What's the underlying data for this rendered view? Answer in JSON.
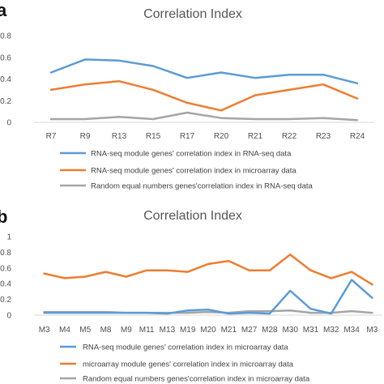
{
  "chart_data": [
    {
      "panel_label": "a",
      "type": "line",
      "title": "Correlation Index",
      "xlabel": "",
      "ylabel": "",
      "categories": [
        "R7",
        "R9",
        "R13",
        "R15",
        "R17",
        "R20",
        "R21",
        "R22",
        "R23",
        "R24"
      ],
      "y_tick_labels": [
        "0",
        "0.2",
        "0.4",
        "0.6",
        "0.8"
      ],
      "y_tick_values": [
        0,
        0.2,
        0.4,
        0.6,
        0.8
      ],
      "ylim": [
        0,
        0.8
      ],
      "grid": false,
      "legend_position": "bottom",
      "series": [
        {
          "name": "RNA-seq module genes' correlation index in RNA-seq data",
          "color": "#5B9BD5",
          "values": [
            0.46,
            0.58,
            0.57,
            0.52,
            0.41,
            0.46,
            0.41,
            0.44,
            0.44,
            0.36
          ]
        },
        {
          "name": "RNA-seq module genes' correlation index in microarray data",
          "color": "#ED7D31",
          "values": [
            0.3,
            0.35,
            0.38,
            0.3,
            0.18,
            0.11,
            0.25,
            0.3,
            0.35,
            0.22
          ]
        },
        {
          "name": "Random equal numbers genes'correlation index in RNA-seq data",
          "color": "#A5A5A5",
          "values": [
            0.03,
            0.03,
            0.05,
            0.03,
            0.09,
            0.04,
            0.03,
            0.03,
            0.04,
            0.02
          ]
        }
      ]
    },
    {
      "panel_label": "b",
      "type": "line",
      "title": "Correlation Index",
      "xlabel": "",
      "ylabel": "",
      "categories": [
        "M3",
        "M4",
        "M5",
        "M8",
        "M9",
        "M11",
        "M13",
        "M19",
        "M20",
        "M21",
        "M27",
        "M28",
        "M30",
        "M31",
        "M32",
        "M34",
        "M3"
      ],
      "y_tick_labels": [
        "0",
        "0.2",
        "0.4",
        "0.6",
        "0.8",
        "1"
      ],
      "y_tick_values": [
        0,
        0.2,
        0.4,
        0.6,
        0.8,
        1.0
      ],
      "ylim": [
        0,
        1.0
      ],
      "grid": false,
      "legend_position": "bottom",
      "series": [
        {
          "name": "RNA-seq module genes' correlation index in microarray data",
          "color": "#5B9BD5",
          "values": [
            0.03,
            0.03,
            0.03,
            0.03,
            0.03,
            0.03,
            0.02,
            0.06,
            0.07,
            0.02,
            0.03,
            0.02,
            0.31,
            0.08,
            0.02,
            0.45,
            0.22
          ]
        },
        {
          "name": "microarray module genes' correlation index in microarray data",
          "color": "#ED7D31",
          "values": [
            0.53,
            0.47,
            0.49,
            0.55,
            0.49,
            0.57,
            0.57,
            0.55,
            0.65,
            0.69,
            0.57,
            0.57,
            0.77,
            0.57,
            0.47,
            0.55,
            0.39
          ]
        },
        {
          "name": "Random equal numbers genes'correlation index in microarray data",
          "color": "#A5A5A5",
          "values": [
            0.04,
            0.04,
            0.04,
            0.04,
            0.03,
            0.03,
            0.03,
            0.03,
            0.04,
            0.03,
            0.05,
            0.05,
            0.06,
            0.03,
            0.03,
            0.05,
            0.03
          ]
        }
      ]
    }
  ]
}
